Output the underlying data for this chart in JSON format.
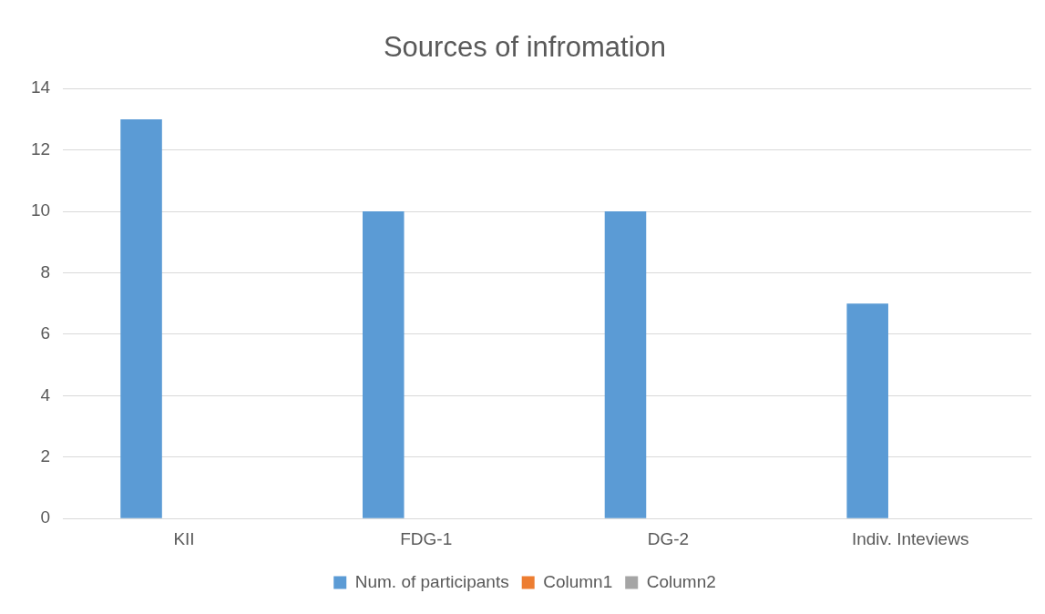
{
  "chart_data": {
    "type": "bar",
    "title": "Sources of infromation",
    "categories": [
      "KII",
      "FDG-1",
      "DG-2",
      "Indiv. Inteviews"
    ],
    "series": [
      {
        "name": "Num. of participants",
        "color": "#5b9bd5",
        "values": [
          13,
          10,
          10,
          7
        ]
      },
      {
        "name": "Column1",
        "color": "#ed7d31",
        "values": [
          null,
          null,
          null,
          null
        ]
      },
      {
        "name": "Column2",
        "color": "#a5a5a5",
        "values": [
          null,
          null,
          null,
          null
        ]
      }
    ],
    "ylim": [
      0,
      14
    ],
    "yticks": [
      0,
      2,
      4,
      6,
      8,
      10,
      12,
      14
    ],
    "grid": "y",
    "legend": "bottom"
  }
}
